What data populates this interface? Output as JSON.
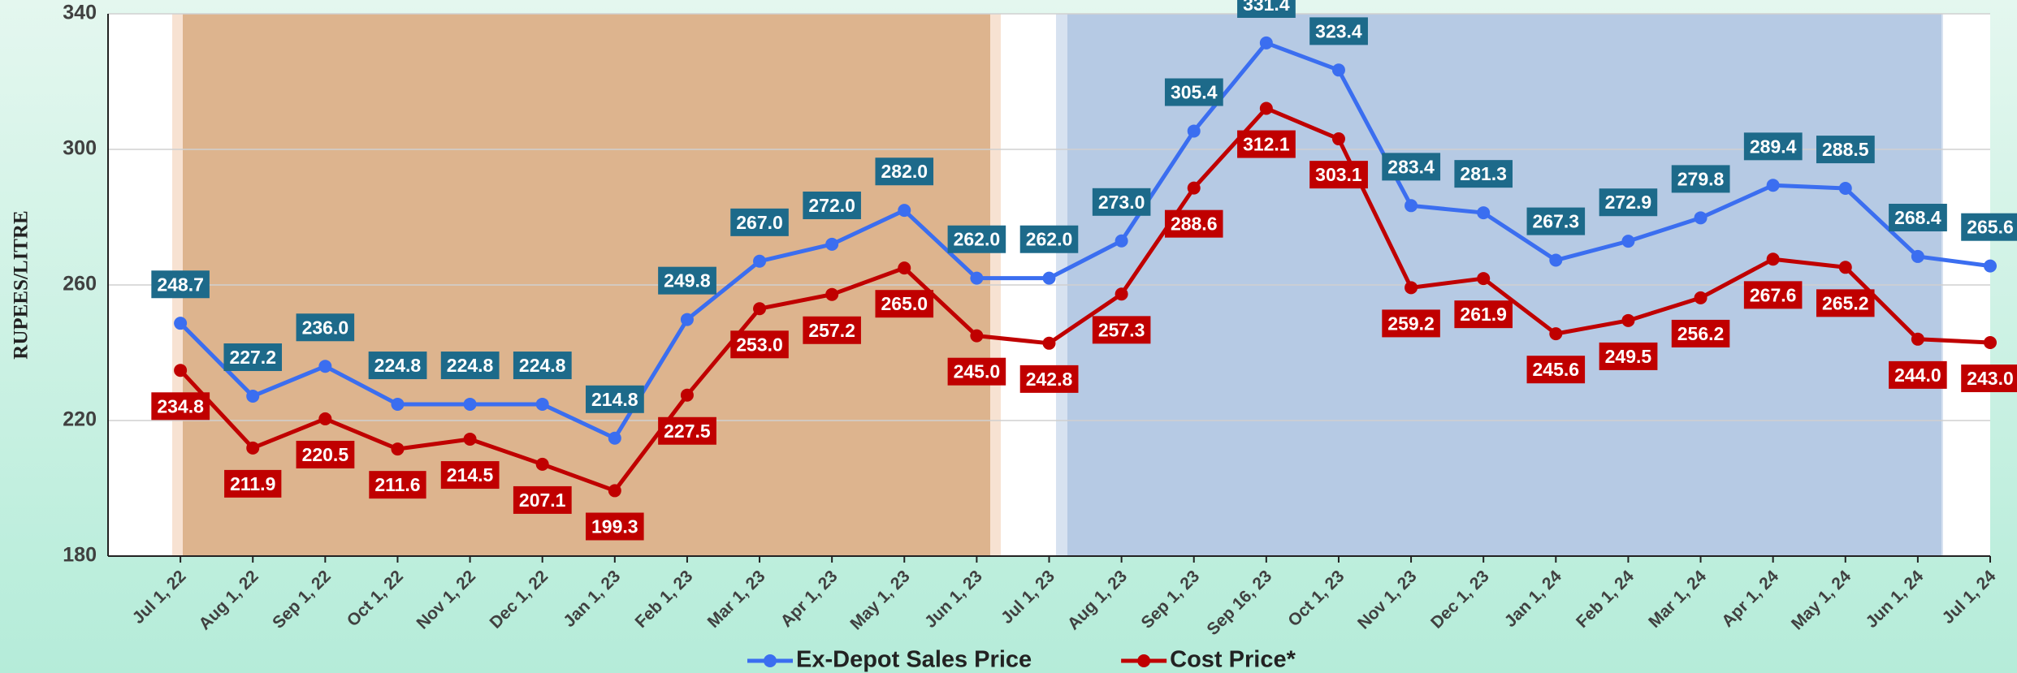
{
  "chart_data": {
    "type": "line",
    "y_label": "RUPEES/LITRE",
    "categories": [
      "Jul 1, 22",
      "Aug 1, 22",
      "Sep 1, 22",
      "Oct 1, 22",
      "Nov 1, 22",
      "Dec 1, 22",
      "Jan 1, 23",
      "Feb 1, 23",
      "Mar 1, 23",
      "Apr 1, 23",
      "May 1, 23",
      "Jun 1, 23",
      "Jul 1, 23",
      "Aug 1, 23",
      "Sep 1, 23",
      "Sep 16, 23",
      "Oct 1, 23",
      "Nov 1, 23",
      "Dec 1, 23",
      "Jan 1, 24",
      "Feb 1, 24",
      "Mar 1, 24",
      "Apr 1, 24",
      "May 1, 24",
      "Jun 1, 24",
      "Jul 1, 24"
    ],
    "series": [
      {
        "name": "Ex-Depot Sales Price",
        "color": "#3b6ef0",
        "label_color": "#1d6a8a",
        "values": [
          248.7,
          227.2,
          236.0,
          224.8,
          224.8,
          224.8,
          214.8,
          249.8,
          267.0,
          272.0,
          282.0,
          262.0,
          262.0,
          273.0,
          305.4,
          331.4,
          323.4,
          283.4,
          281.3,
          267.3,
          272.9,
          279.8,
          289.4,
          288.5,
          268.4,
          265.6
        ],
        "value_labels": [
          "248.7",
          "227.2",
          "236.0",
          "224.8",
          "224.8",
          "224.8",
          "214.8",
          "249.8",
          "267.0",
          "272.0",
          "282.0",
          "262.0",
          "262.0",
          "273.0",
          "305.4",
          "331.4",
          "323.4",
          "283.4",
          "281.3",
          "267.3",
          "272.9",
          "279.8",
          "289.4",
          "288.5",
          "268.4",
          "265.6"
        ]
      },
      {
        "name": "Cost Price*",
        "color": "#c00000",
        "label_color": "#c00000",
        "values": [
          234.8,
          211.9,
          220.5,
          211.6,
          214.5,
          207.1,
          199.3,
          227.5,
          253.0,
          257.2,
          265.0,
          245.0,
          242.8,
          257.3,
          288.6,
          312.1,
          303.1,
          259.2,
          261.9,
          245.6,
          249.5,
          256.2,
          267.6,
          265.2,
          244.0,
          243.0
        ],
        "value_labels": [
          "234.8",
          "211.9",
          "220.5",
          "211.6",
          "214.5",
          "207.1",
          "199.3",
          "227.5",
          "253.0",
          "257.2",
          "265.0",
          "245.0",
          "242.8",
          "257.3",
          "288.6",
          "312.1",
          "303.1",
          "259.2",
          "261.9",
          "245.6",
          "249.5",
          "256.2",
          "267.6",
          "265.2",
          "244.0",
          "243.0"
        ]
      }
    ],
    "ylim": [
      180,
      340
    ],
    "yticks": [
      180,
      220,
      260,
      300,
      340
    ],
    "grid": true,
    "legend": "bottom"
  }
}
